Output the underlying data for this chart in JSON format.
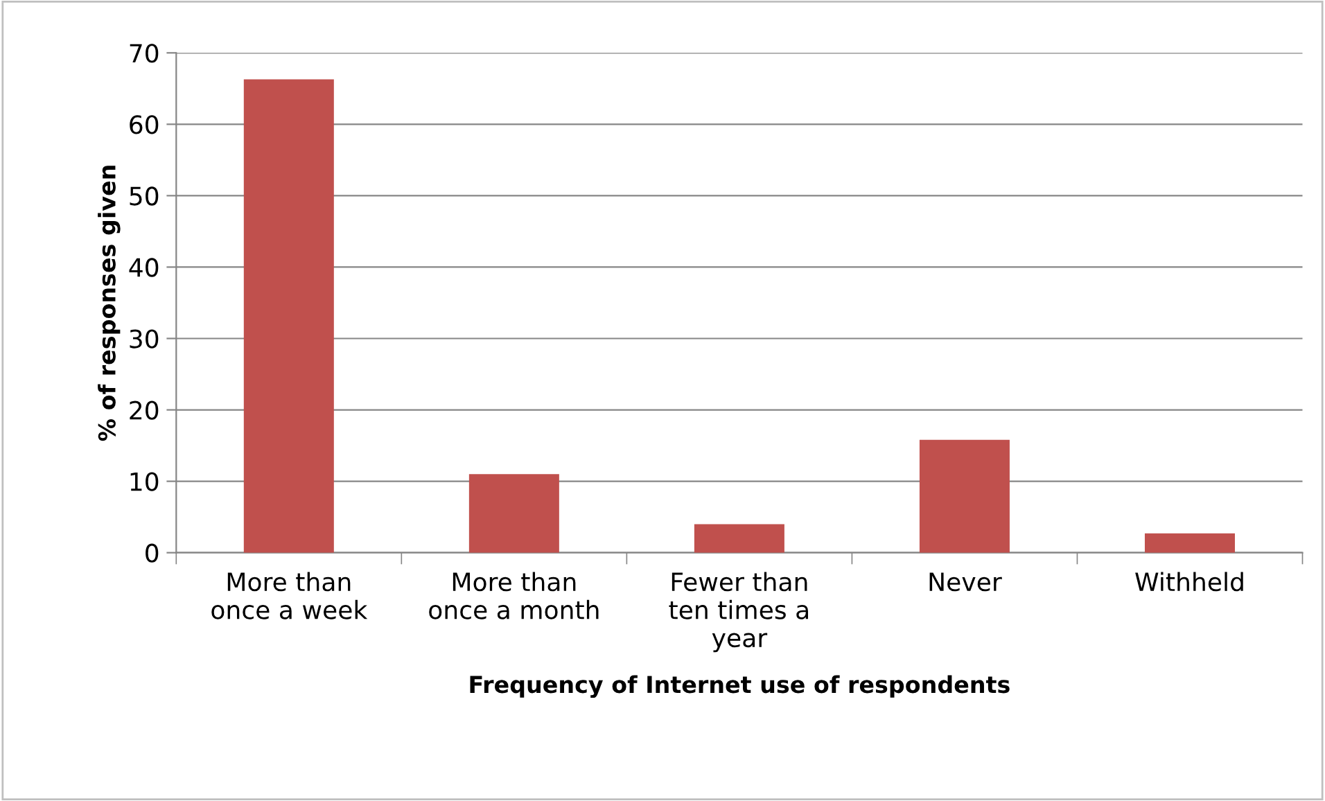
{
  "chart_data": {
    "type": "bar",
    "categories": [
      "More than\nonce a week",
      "More than\nonce a month",
      "Fewer than\nten times a\nyear",
      "Never",
      "Withheld"
    ],
    "values": [
      66.3,
      11,
      4,
      15.8,
      2.7
    ],
    "color": "#c0504d",
    "xlabel": "Frequency of Internet use of respondents",
    "ylabel": "% of responses given",
    "ylim": [
      0,
      70
    ],
    "yticks": [
      0,
      10,
      20,
      30,
      40,
      50,
      60,
      70
    ],
    "grid": "y",
    "legend": false
  }
}
